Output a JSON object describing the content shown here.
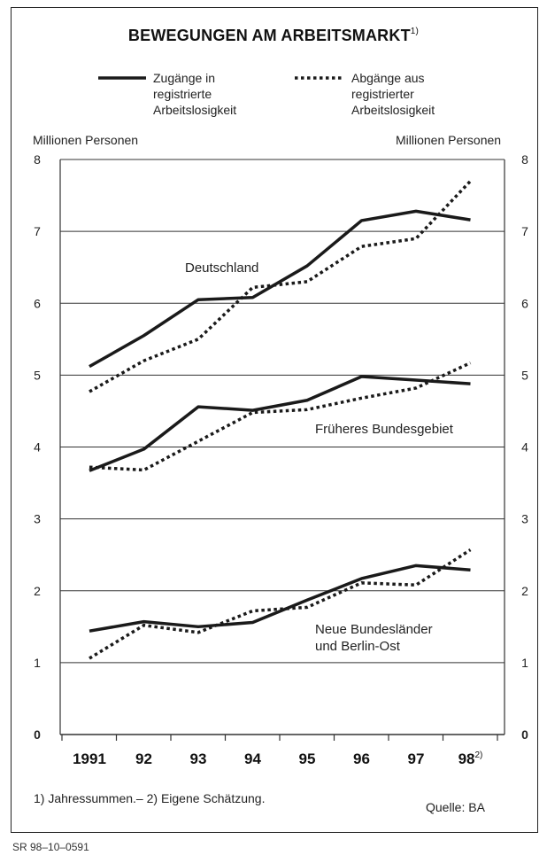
{
  "title": "BEWEGUNGEN AM ARBEITSMARKT",
  "title_footnote_mark": "1)",
  "legend": {
    "position": "top",
    "solid_label": [
      "Zugänge in",
      "registrierte",
      "Arbeitslosigkeit"
    ],
    "dotted_label": [
      "Abgänge aus",
      "registrierter",
      "Arbeitslosigkeit"
    ]
  },
  "left_unit": "Millionen Personen",
  "right_unit": "Millionen Personen",
  "footnote": "1) Jahressummen.– 2) Eigene Schätzung.",
  "source": "Quelle: BA",
  "code": "SR 98–10–0591",
  "colors": {
    "line": "#1a1a1a",
    "grid": "#333333"
  },
  "chart_data": {
    "type": "line",
    "categories": [
      "1991",
      "92",
      "93",
      "94",
      "95",
      "96",
      "97",
      "98"
    ],
    "last_category_footnote": "2)",
    "ylim": [
      0,
      8
    ],
    "yticks": [
      0,
      1,
      2,
      3,
      4,
      5,
      6,
      7,
      8
    ],
    "grid": true,
    "groups": [
      {
        "label": [
          "Deutschland"
        ],
        "zugaenge": [
          5.12,
          5.55,
          6.05,
          6.08,
          6.52,
          7.15,
          7.28,
          7.16
        ],
        "abgaenge": [
          4.77,
          5.2,
          5.5,
          6.22,
          6.3,
          6.79,
          6.9,
          7.7
        ]
      },
      {
        "label": [
          "Früheres Bundesgebiet"
        ],
        "zugaenge": [
          3.67,
          3.97,
          4.56,
          4.51,
          4.65,
          4.98,
          4.93,
          4.88
        ],
        "abgaenge": [
          3.72,
          3.68,
          4.08,
          4.48,
          4.52,
          4.68,
          4.82,
          5.17
        ]
      },
      {
        "label": [
          "Neue Bundesländer",
          "und Berlin-Ost"
        ],
        "zugaenge": [
          1.44,
          1.57,
          1.5,
          1.56,
          1.87,
          2.17,
          2.35,
          2.29
        ],
        "abgaenge": [
          1.06,
          1.52,
          1.42,
          1.72,
          1.77,
          2.11,
          2.08,
          2.57
        ]
      }
    ]
  }
}
